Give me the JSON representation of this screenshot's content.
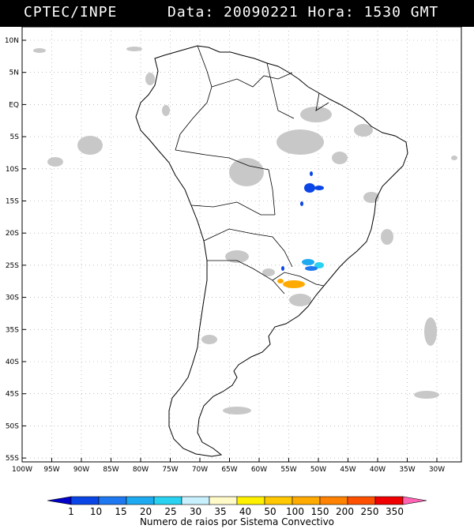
{
  "header": {
    "source": "CPTEC/INPE",
    "info": "Data: 20090221 Hora: 1530 GMT"
  },
  "map": {
    "lat_labels": [
      "10N",
      "5N",
      "EQ",
      "5S",
      "10S",
      "15S",
      "20S",
      "25S",
      "30S",
      "35S",
      "40S",
      "45S",
      "50S",
      "55S"
    ],
    "lon_labels": [
      "100W",
      "95W",
      "90W",
      "85W",
      "80W",
      "75W",
      "70W",
      "65W",
      "60W",
      "55W",
      "50W",
      "45W",
      "40W",
      "35W",
      "30W"
    ],
    "region": "South America"
  },
  "colorbar": {
    "values": [
      "1",
      "10",
      "15",
      "20",
      "25",
      "30",
      "35",
      "40",
      "50",
      "100",
      "150",
      "200",
      "250",
      "350"
    ],
    "colors": [
      "#0000c8",
      "#0a46e6",
      "#1e78f0",
      "#1eaaf0",
      "#28d2f0",
      "#c8f0ff",
      "#fffac8",
      "#fff000",
      "#ffc800",
      "#ffaa00",
      "#ff8200",
      "#ff5000",
      "#f00000",
      "#ff64b4"
    ],
    "title": "Numero de raios por Sistema Convectivo"
  }
}
